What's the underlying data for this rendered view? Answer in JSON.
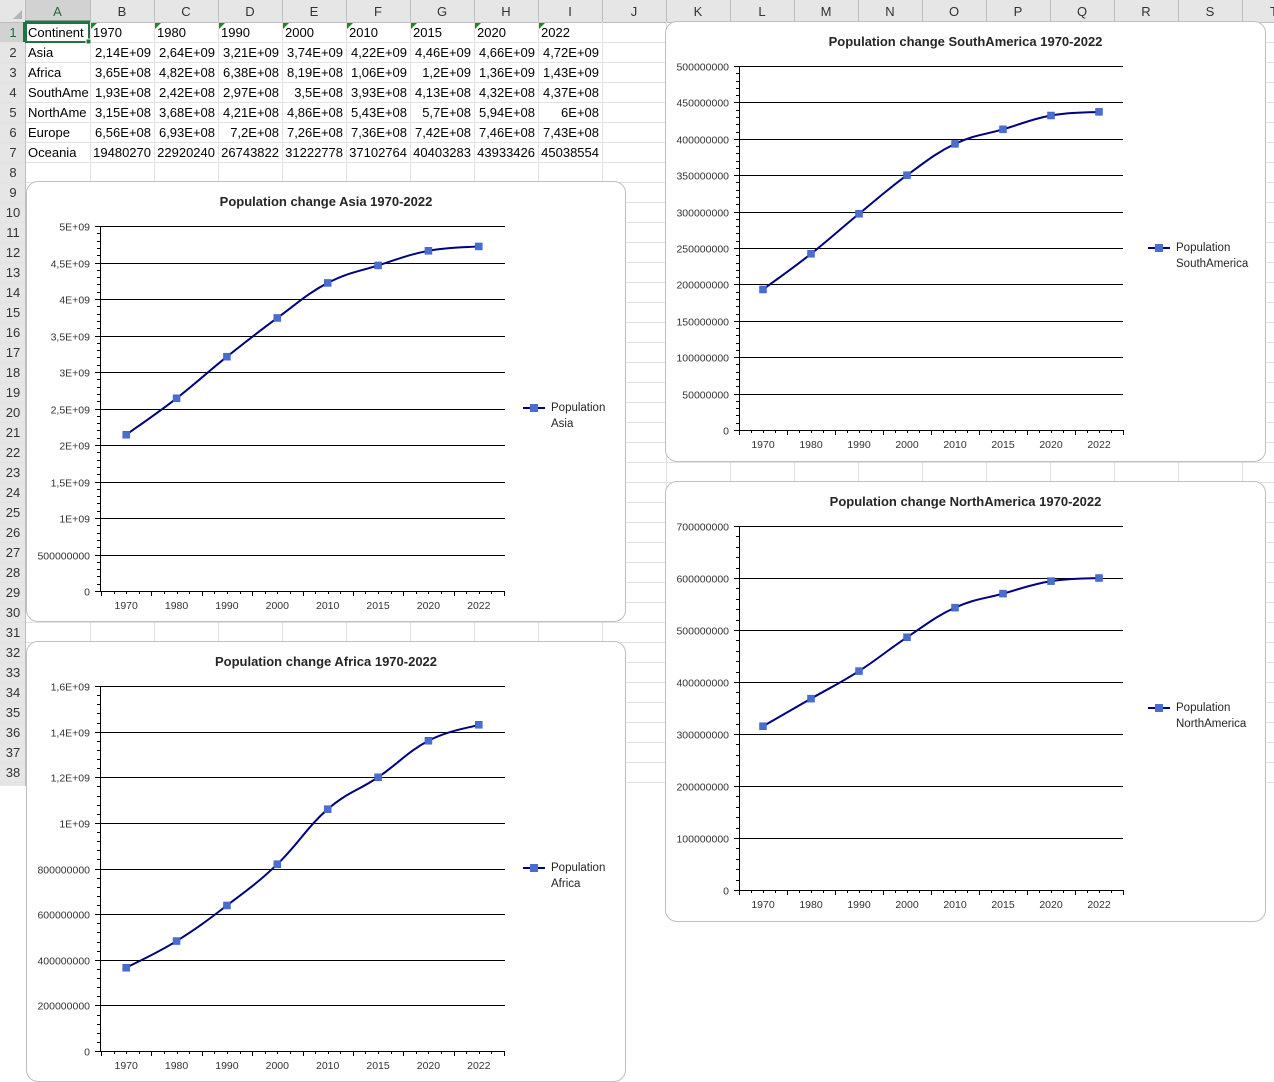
{
  "sheet": {
    "columns": [
      "A",
      "B",
      "C",
      "D",
      "E",
      "F",
      "G",
      "H",
      "I",
      "J",
      "K",
      "L",
      "M",
      "N",
      "O",
      "P",
      "Q",
      "R",
      "S",
      "T"
    ],
    "rows": [
      "1",
      "2",
      "3",
      "4",
      "5",
      "6",
      "7",
      "8",
      "9",
      "10",
      "11",
      "12",
      "13",
      "14",
      "15",
      "16",
      "17",
      "18",
      "19",
      "20",
      "21",
      "22",
      "23",
      "24",
      "25",
      "26",
      "27",
      "28",
      "29",
      "30",
      "31",
      "32",
      "33",
      "34",
      "35",
      "36",
      "37",
      "38"
    ],
    "selected_cell": "A1",
    "cells": [
      [
        "Continent",
        "1970",
        "1980",
        "1990",
        "2000",
        "2010",
        "2015",
        "2020",
        "2022"
      ],
      [
        "Asia",
        "2,14E+09",
        "2,64E+09",
        "3,21E+09",
        "3,74E+09",
        "4,22E+09",
        "4,46E+09",
        "4,66E+09",
        "4,72E+09"
      ],
      [
        "Africa",
        "3,65E+08",
        "4,82E+08",
        "6,38E+08",
        "8,19E+08",
        "1,06E+09",
        "1,2E+09",
        "1,36E+09",
        "1,43E+09"
      ],
      [
        "SouthAme",
        "1,93E+08",
        "2,42E+08",
        "2,97E+08",
        "3,5E+08",
        "3,93E+08",
        "4,13E+08",
        "4,32E+08",
        "4,37E+08"
      ],
      [
        "NorthAme",
        "3,15E+08",
        "3,68E+08",
        "4,21E+08",
        "4,86E+08",
        "5,43E+08",
        "5,7E+08",
        "5,94E+08",
        "6E+08"
      ],
      [
        "Europe",
        "6,56E+08",
        "6,93E+08",
        "7,2E+08",
        "7,26E+08",
        "7,36E+08",
        "7,42E+08",
        "7,46E+08",
        "7,43E+08"
      ],
      [
        "Oceania",
        "19480270",
        "22920240",
        "26743822",
        "31222778",
        "37102764",
        "40403283",
        "43933426",
        "45038554"
      ]
    ]
  },
  "chart_data": [
    {
      "type": "line",
      "title": "Population change Asia 1970-2022",
      "categories": [
        "1970",
        "1980",
        "1990",
        "2000",
        "2010",
        "2015",
        "2020",
        "2022"
      ],
      "series": [
        {
          "name": "Population Asia",
          "values": [
            2140000000,
            2640000000,
            3210000000,
            3740000000,
            4220000000,
            4460000000,
            4660000000,
            4720000000
          ]
        }
      ],
      "ylim": [
        0,
        5000000000
      ],
      "y_ticks": [
        "0",
        "500000000",
        "1E+09",
        "1,5E+09",
        "2E+09",
        "2,5E+09",
        "3E+09",
        "3,5E+09",
        "4E+09",
        "4,5E+09",
        "5E+09"
      ],
      "legend_lines": [
        "Population",
        "Asia"
      ],
      "legend_position": "right",
      "grid": true,
      "color": "#000080",
      "marker_color": "#4a6ed0"
    },
    {
      "type": "line",
      "title": "Population change Africa 1970-2022",
      "categories": [
        "1970",
        "1980",
        "1990",
        "2000",
        "2010",
        "2015",
        "2020",
        "2022"
      ],
      "series": [
        {
          "name": "Population Africa",
          "values": [
            365000000,
            482000000,
            638000000,
            819000000,
            1060000000,
            1200000000,
            1360000000,
            1430000000
          ]
        }
      ],
      "ylim": [
        0,
        1600000000
      ],
      "y_ticks": [
        "0",
        "200000000",
        "400000000",
        "600000000",
        "800000000",
        "1E+09",
        "1,2E+09",
        "1,4E+09",
        "1,6E+09"
      ],
      "legend_lines": [
        "Population",
        "Africa"
      ],
      "legend_position": "right",
      "grid": true,
      "color": "#000080",
      "marker_color": "#4a6ed0"
    },
    {
      "type": "line",
      "title": "Population change SouthAmerica 1970-2022",
      "categories": [
        "1970",
        "1980",
        "1990",
        "2000",
        "2010",
        "2015",
        "2020",
        "2022"
      ],
      "series": [
        {
          "name": "Population SouthAmerica",
          "values": [
            193000000,
            242000000,
            297000000,
            350000000,
            393000000,
            413000000,
            432000000,
            437000000
          ]
        }
      ],
      "ylim": [
        0,
        500000000
      ],
      "y_ticks": [
        "0",
        "50000000",
        "100000000",
        "150000000",
        "200000000",
        "250000000",
        "300000000",
        "350000000",
        "400000000",
        "450000000",
        "500000000"
      ],
      "legend_lines": [
        "Population",
        "SouthAmerica"
      ],
      "legend_position": "right",
      "grid": true,
      "color": "#000080",
      "marker_color": "#4a6ed0"
    },
    {
      "type": "line",
      "title": "Population change NorthAmerica 1970-2022",
      "categories": [
        "1970",
        "1980",
        "1990",
        "2000",
        "2010",
        "2015",
        "2020",
        "2022"
      ],
      "series": [
        {
          "name": "Population NorthAmerica",
          "values": [
            315000000,
            368000000,
            421000000,
            486000000,
            543000000,
            570000000,
            594000000,
            600000000
          ]
        }
      ],
      "ylim": [
        0,
        700000000
      ],
      "y_ticks": [
        "0",
        "100000000",
        "200000000",
        "300000000",
        "400000000",
        "500000000",
        "600000000",
        "700000000"
      ],
      "legend_lines": [
        "Population",
        "NorthAmerica"
      ],
      "legend_position": "right",
      "grid": true,
      "color": "#000080",
      "marker_color": "#4a6ed0"
    }
  ]
}
